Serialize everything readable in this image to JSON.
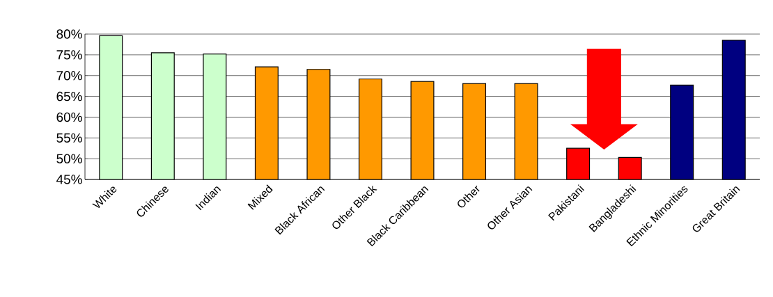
{
  "chart_data": {
    "type": "bar",
    "categories": [
      "White",
      "Chinese",
      "Indian",
      "Mixed",
      "Black African",
      "Other Black",
      "Black Caribbean",
      "Other",
      "Other Asian",
      "Pakistani",
      "Bangladeshi",
      "Ethnic Minorities",
      "Great Britain"
    ],
    "values": [
      79.6,
      75.5,
      75.2,
      72.1,
      71.5,
      69.2,
      68.6,
      68.1,
      68.1,
      52.5,
      50.3,
      67.7,
      78.5
    ],
    "colors": [
      "#ccffcc",
      "#ccffcc",
      "#ccffcc",
      "#ff9900",
      "#ff9900",
      "#ff9900",
      "#ff9900",
      "#ff9900",
      "#ff9900",
      "#ff0000",
      "#ff0000",
      "#000080",
      "#000080"
    ],
    "ylim": [
      45,
      80
    ],
    "yticks": [
      {
        "value": 45,
        "label": "45%"
      },
      {
        "value": 50,
        "label": "50%"
      },
      {
        "value": 55,
        "label": "55%"
      },
      {
        "value": 60,
        "label": "60%"
      },
      {
        "value": 65,
        "label": "65%"
      },
      {
        "value": 70,
        "label": "70%"
      },
      {
        "value": 75,
        "label": "75%"
      },
      {
        "value": 80,
        "label": "80%"
      }
    ],
    "grid": "y"
  }
}
